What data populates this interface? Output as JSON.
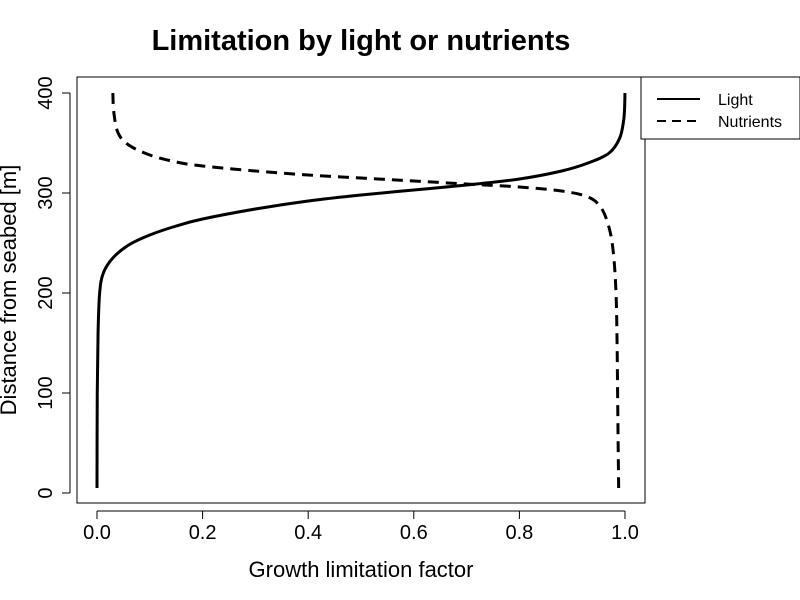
{
  "chart_data": {
    "type": "line",
    "title": "Limitation by light or nutrients",
    "xlabel": "Growth limitation factor",
    "ylabel": "Distance from seabed [m]",
    "xlim": [
      0,
      1
    ],
    "ylim": [
      0,
      400
    ],
    "xticks": [
      0.0,
      0.2,
      0.4,
      0.6,
      0.8,
      1.0
    ],
    "xtick_labels": [
      "0.0",
      "0.2",
      "0.4",
      "0.6",
      "0.8",
      "1.0"
    ],
    "yticks": [
      0,
      100,
      200,
      300,
      400
    ],
    "ytick_labels": [
      "0",
      "100",
      "200",
      "300",
      "400"
    ],
    "legend": {
      "position": "top-right",
      "entries": [
        {
          "label": "Light",
          "style": "solid"
        },
        {
          "label": "Nutrients",
          "style": "dashed"
        }
      ]
    },
    "series": [
      {
        "name": "Light",
        "style": "solid",
        "color": "#000000",
        "points": [
          [
            0.0,
            5
          ],
          [
            0.0005,
            100
          ],
          [
            0.002,
            160
          ],
          [
            0.005,
            200
          ],
          [
            0.012,
            220
          ],
          [
            0.03,
            235
          ],
          [
            0.06,
            248
          ],
          [
            0.1,
            258
          ],
          [
            0.15,
            267
          ],
          [
            0.2,
            274
          ],
          [
            0.3,
            284
          ],
          [
            0.4,
            292
          ],
          [
            0.5,
            298
          ],
          [
            0.6,
            303
          ],
          [
            0.7,
            308
          ],
          [
            0.8,
            314
          ],
          [
            0.88,
            322
          ],
          [
            0.93,
            330
          ],
          [
            0.97,
            340
          ],
          [
            0.99,
            355
          ],
          [
            0.998,
            375
          ],
          [
            1.0,
            400
          ]
        ]
      },
      {
        "name": "Nutrients",
        "style": "dashed",
        "color": "#000000",
        "points": [
          [
            0.03,
            400
          ],
          [
            0.032,
            380
          ],
          [
            0.04,
            360
          ],
          [
            0.06,
            348
          ],
          [
            0.1,
            338
          ],
          [
            0.15,
            331
          ],
          [
            0.2,
            327
          ],
          [
            0.3,
            322
          ],
          [
            0.4,
            318
          ],
          [
            0.5,
            315
          ],
          [
            0.6,
            312
          ],
          [
            0.7,
            309
          ],
          [
            0.8,
            306
          ],
          [
            0.88,
            302
          ],
          [
            0.93,
            296
          ],
          [
            0.955,
            285
          ],
          [
            0.97,
            265
          ],
          [
            0.978,
            240
          ],
          [
            0.983,
            200
          ],
          [
            0.985,
            150
          ],
          [
            0.986,
            100
          ],
          [
            0.987,
            50
          ],
          [
            0.988,
            5
          ]
        ]
      }
    ]
  }
}
